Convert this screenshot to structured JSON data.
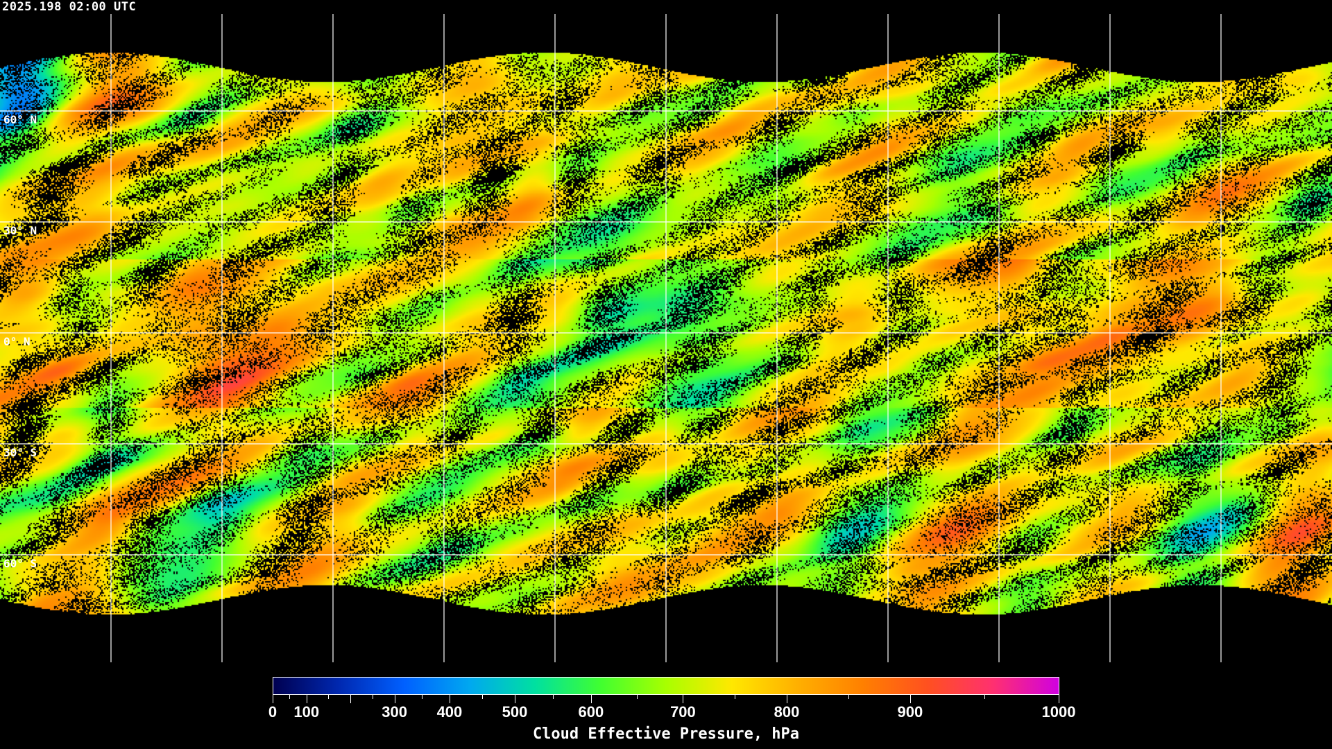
{
  "title": "2025.198 02:00 UTC",
  "map": {
    "projection": "equirectangular",
    "grid_spacing_deg": 30,
    "gridlines": true,
    "coastlines_color": "#ffffff",
    "background_color": "#000000",
    "lat_labels": [
      "60° N",
      "30° N",
      "0° N",
      "30° S",
      "60° S"
    ]
  },
  "colorbar": {
    "title": "Cloud Effective Pressure, hPa",
    "range": [
      0,
      1000
    ],
    "tick_labels": [
      "0",
      "100",
      "300",
      "400",
      "500",
      "600",
      "700",
      "800",
      "900",
      "1000"
    ],
    "colors": [
      "#000050",
      "#0028b0",
      "#0060ff",
      "#00a8f0",
      "#00e0a0",
      "#40ff30",
      "#a8ff00",
      "#ffe800",
      "#ffb000",
      "#ff8000",
      "#ff5020",
      "#ff3070",
      "#d000e0"
    ]
  }
}
